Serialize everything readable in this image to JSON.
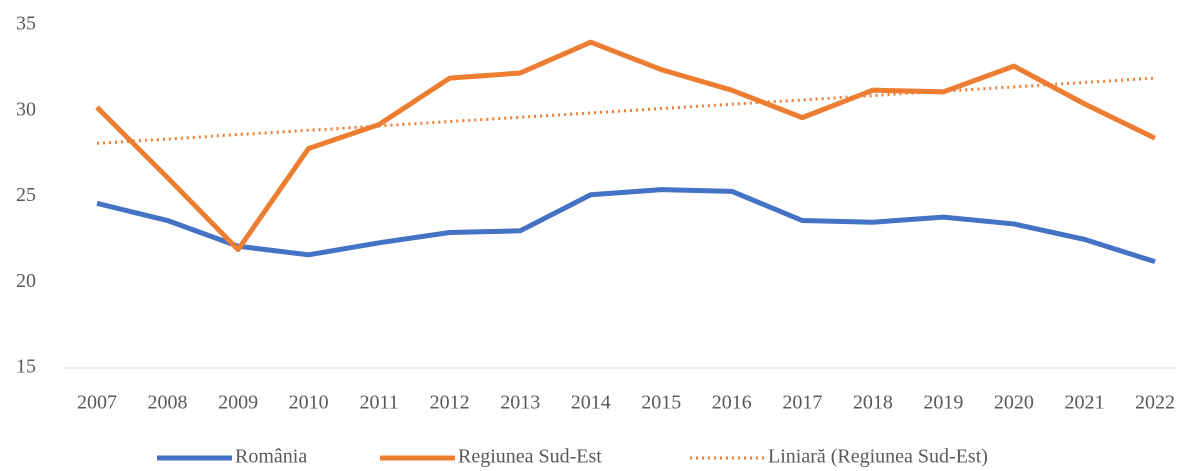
{
  "chart_data": {
    "type": "line",
    "categories": [
      "2007",
      "2008",
      "2009",
      "2010",
      "2011",
      "2012",
      "2013",
      "2014",
      "2015",
      "2016",
      "2017",
      "2018",
      "2019",
      "2020",
      "2021",
      "2022"
    ],
    "series": [
      {
        "name": "România",
        "color": "#4472c4",
        "style": "solid",
        "values": [
          24.6,
          23.6,
          22.1,
          21.6,
          22.3,
          22.9,
          23.0,
          25.1,
          25.4,
          25.3,
          23.6,
          23.5,
          23.8,
          23.4,
          22.5,
          21.2
        ]
      },
      {
        "name": "Regiunea Sud-Est",
        "color": "#ed7d31",
        "style": "solid",
        "values": [
          30.2,
          26.1,
          21.9,
          27.8,
          29.2,
          31.9,
          32.2,
          34.0,
          32.4,
          31.2,
          29.6,
          31.2,
          31.1,
          32.6,
          30.4,
          28.4
        ]
      },
      {
        "name": "Liniară (Regiunea Sud-Est)",
        "color": "#ed7d31",
        "style": "dotted",
        "values": [
          28.1,
          28.35,
          28.61,
          28.86,
          29.11,
          29.37,
          29.62,
          29.87,
          30.13,
          30.38,
          30.63,
          30.89,
          31.14,
          31.39,
          31.65,
          31.9
        ]
      }
    ],
    "ylim": [
      15,
      35
    ],
    "yticks": [
      15,
      20,
      25,
      30,
      35
    ],
    "grid": false,
    "legend": "bottom"
  }
}
